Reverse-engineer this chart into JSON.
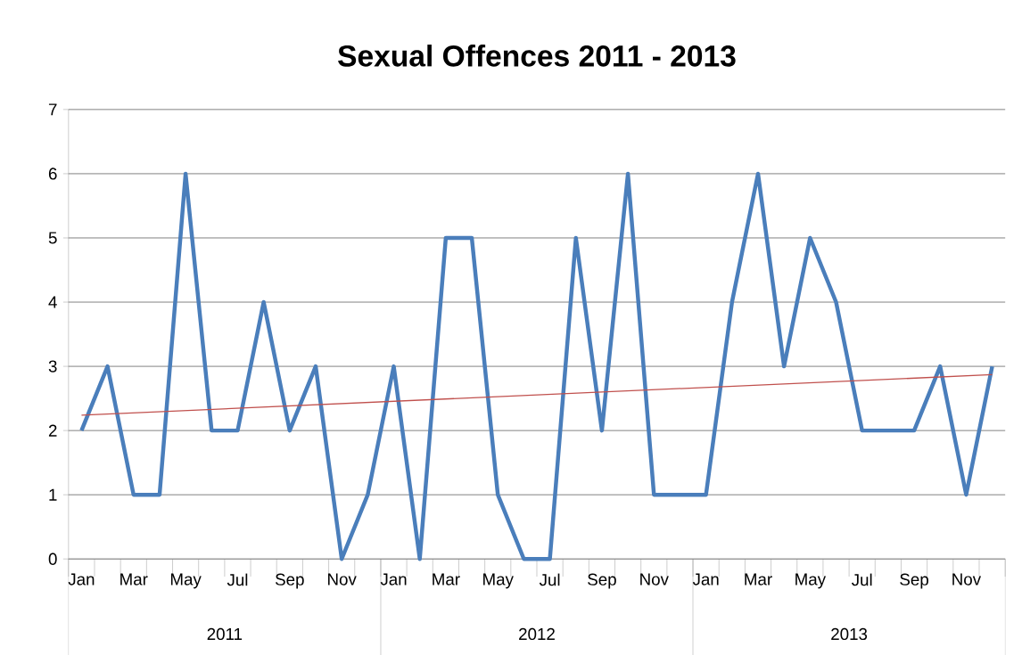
{
  "chart_data": {
    "type": "line",
    "title": "Sexual Offences 2011 - 2013",
    "categories": [
      "Jan",
      null,
      "Mar",
      null,
      "May",
      null,
      "Jul",
      null,
      "Sep",
      null,
      "Nov",
      null,
      "Jan",
      null,
      "Mar",
      null,
      "May",
      null,
      "Jul",
      null,
      "Sep",
      null,
      "Nov",
      null,
      "Jan",
      null,
      "Mar",
      null,
      "May",
      null,
      "Jul",
      null,
      "Sep",
      null,
      "Nov",
      null
    ],
    "series": [
      {
        "color": "#4a7ebb",
        "values": [
          2,
          3,
          1,
          1,
          6,
          2,
          2,
          4,
          2,
          3,
          0,
          1,
          3,
          0,
          5,
          5,
          1,
          0,
          0,
          5,
          2,
          6,
          1,
          1,
          1,
          4,
          6,
          3,
          5,
          4,
          2,
          2,
          2,
          3,
          1,
          3
        ]
      },
      {
        "type": "line",
        "color": "#c0504d",
        "values": [
          2.24,
          null,
          null,
          null,
          null,
          null,
          null,
          null,
          null,
          null,
          null,
          null,
          null,
          null,
          null,
          null,
          null,
          null,
          null,
          null,
          null,
          null,
          null,
          null,
          null,
          null,
          null,
          null,
          null,
          null,
          null,
          null,
          null,
          null,
          null,
          2.87
        ]
      }
    ],
    "annotations": [
      "2011",
      "2012",
      "2013"
    ],
    "ylim": [
      0,
      7
    ],
    "yticks": [
      0,
      1,
      2,
      3,
      4,
      5,
      6,
      7
    ],
    "grid": "y",
    "marker": "none",
    "line_style": "solid"
  }
}
